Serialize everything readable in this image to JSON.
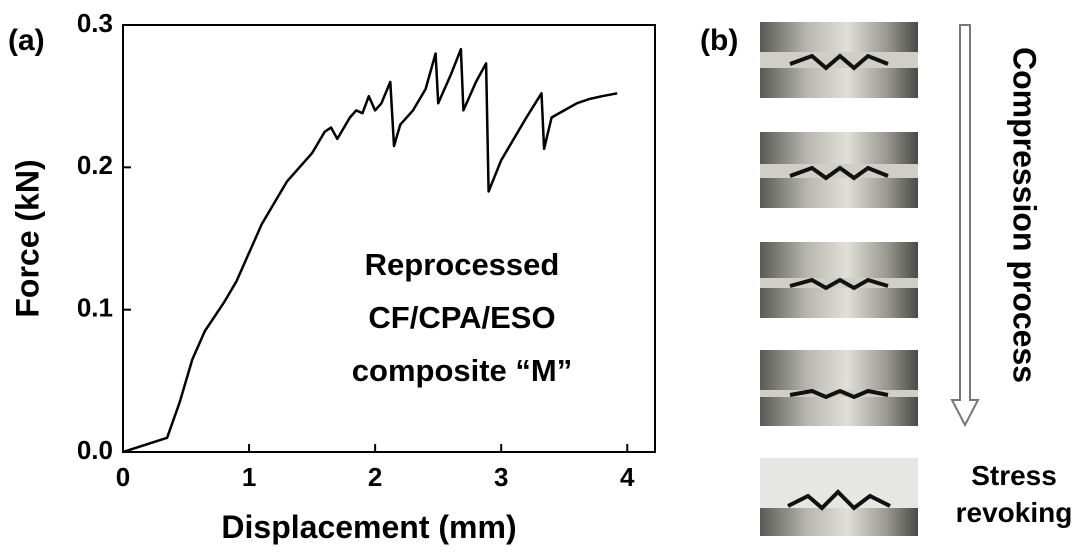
{
  "chart_data": {
    "type": "line",
    "panel_label": "(a)",
    "xlabel": "Displacement (mm)",
    "ylabel": "Force (kN)",
    "annotation": [
      "Reprocessed",
      "CF/CPA/ESO",
      "composite “M”"
    ],
    "color": "#000000",
    "x": [
      0,
      0.35,
      0.45,
      0.55,
      0.65,
      0.8,
      0.9,
      1.0,
      1.1,
      1.2,
      1.3,
      1.4,
      1.5,
      1.6,
      1.65,
      1.7,
      1.8,
      1.85,
      1.9,
      1.95,
      2.0,
      2.05,
      2.12,
      2.15,
      2.2,
      2.3,
      2.4,
      2.48,
      2.5,
      2.6,
      2.68,
      2.7,
      2.8,
      2.88,
      2.9,
      3.0,
      3.1,
      3.2,
      3.32,
      3.34,
      3.4,
      3.5,
      3.6,
      3.7,
      3.8,
      3.92
    ],
    "values": [
      0,
      0.01,
      0.035,
      0.065,
      0.085,
      0.105,
      0.12,
      0.14,
      0.16,
      0.175,
      0.19,
      0.2,
      0.21,
      0.225,
      0.228,
      0.22,
      0.235,
      0.24,
      0.238,
      0.25,
      0.24,
      0.245,
      0.26,
      0.215,
      0.23,
      0.24,
      0.255,
      0.28,
      0.245,
      0.265,
      0.283,
      0.24,
      0.26,
      0.273,
      0.183,
      0.205,
      0.22,
      0.235,
      0.252,
      0.213,
      0.235,
      0.24,
      0.245,
      0.248,
      0.25,
      0.252
    ],
    "xlim": [
      0,
      4.22
    ],
    "ylim": [
      0,
      0.3
    ],
    "xticks": [
      0,
      1,
      2,
      3,
      4
    ],
    "yticks": [
      {
        "value": 0,
        "label": "0.0"
      },
      0.1,
      0.2,
      0.3
    ]
  },
  "panel_b": {
    "label": "(b)",
    "process_label": "Compression process",
    "end_label": [
      "Stress",
      "revoking"
    ]
  }
}
